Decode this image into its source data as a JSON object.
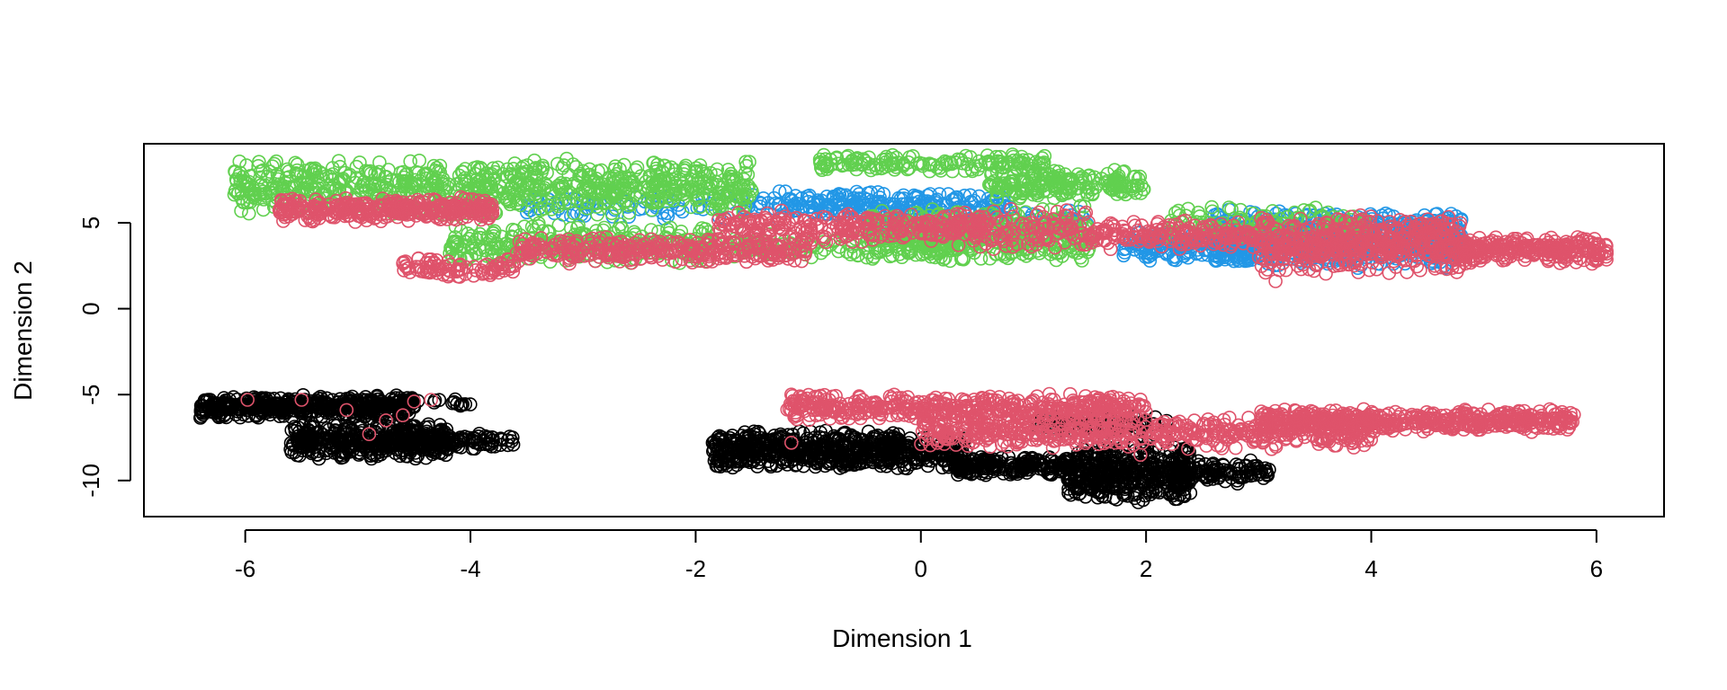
{
  "chart_data": {
    "type": "scatter",
    "title": "",
    "xlabel": "Dimension 1",
    "ylabel": "Dimension 2",
    "xlim": [
      -6.9,
      6.6
    ],
    "ylim": [
      -12.1,
      9.6
    ],
    "xticks": [
      -6,
      -4,
      -2,
      0,
      2,
      4,
      6
    ],
    "yticks": [
      -10,
      -5,
      0,
      5
    ],
    "grid": false,
    "marker": "open-circle",
    "series": [
      {
        "color": "#000000",
        "clusters": [
          {
            "x": [
              -6.4,
              -4.5
            ],
            "y": [
              -6.4,
              -5.0
            ],
            "n": 500
          },
          {
            "x": [
              -5.6,
              -4.2
            ],
            "y": [
              -8.8,
              -6.6
            ],
            "n": 420
          },
          {
            "x": [
              -4.6,
              -3.6
            ],
            "y": [
              -8.2,
              -7.2
            ],
            "n": 90
          },
          {
            "x": [
              -4.6,
              -4.0
            ],
            "y": [
              -5.7,
              -5.1
            ],
            "n": 20
          },
          {
            "x": [
              -1.85,
              -0.2
            ],
            "y": [
              -9.4,
              -7.0
            ],
            "n": 500
          },
          {
            "x": [
              -0.3,
              0.4
            ],
            "y": [
              -9.5,
              -7.3
            ],
            "n": 150
          },
          {
            "x": [
              0.3,
              1.3
            ],
            "y": [
              -9.8,
              -8.5
            ],
            "n": 190
          },
          {
            "x": [
              1.3,
              2.4
            ],
            "y": [
              -11.3,
              -7.8
            ],
            "n": 420
          },
          {
            "x": [
              2.2,
              3.1
            ],
            "y": [
              -10.2,
              -8.8
            ],
            "n": 120
          },
          {
            "x": [
              1.0,
              2.2
            ],
            "y": [
              -7.4,
              -6.2
            ],
            "n": 90
          }
        ]
      },
      {
        "color": "#2297E6",
        "clusters": [
          {
            "x": [
              2.6,
              4.8
            ],
            "y": [
              2.3,
              5.8
            ],
            "n": 700
          },
          {
            "x": [
              1.8,
              3.0
            ],
            "y": [
              2.6,
              4.6
            ],
            "n": 160
          },
          {
            "x": [
              -1.2,
              0.8
            ],
            "y": [
              5.2,
              6.9
            ],
            "n": 220
          },
          {
            "x": [
              -3.5,
              -1.2
            ],
            "y": [
              5.0,
              7.0
            ],
            "n": 90
          },
          {
            "x": [
              -0.5,
              1.5
            ],
            "y": [
              4.2,
              6.0
            ],
            "n": 100
          }
        ]
      },
      {
        "color": "#61D04F",
        "clusters": [
          {
            "x": [
              -6.1,
              -1.5
            ],
            "y": [
              5.4,
              8.8
            ],
            "n": 800
          },
          {
            "x": [
              -0.9,
              1.1
            ],
            "y": [
              7.9,
              9.0
            ],
            "n": 150
          },
          {
            "x": [
              0.6,
              2.0
            ],
            "y": [
              6.2,
              8.3
            ],
            "n": 200
          },
          {
            "x": [
              -0.5,
              1.5
            ],
            "y": [
              2.6,
              6.0
            ],
            "n": 450
          },
          {
            "x": [
              -4.2,
              -1.8
            ],
            "y": [
              2.5,
              5.0
            ],
            "n": 300
          },
          {
            "x": [
              -1.7,
              0.5
            ],
            "y": [
              2.9,
              4.5
            ],
            "n": 120
          },
          {
            "x": [
              2.2,
              4.0
            ],
            "y": [
              4.0,
              6.0
            ],
            "n": 120
          }
        ]
      },
      {
        "color": "#DF536B",
        "clusters": [
          {
            "x": [
              -5.7,
              -3.8
            ],
            "y": [
              5.0,
              6.5
            ],
            "n": 350
          },
          {
            "x": [
              -4.6,
              -3.6
            ],
            "y": [
              1.8,
              3.0
            ],
            "n": 90
          },
          {
            "x": [
              -3.6,
              -1.0
            ],
            "y": [
              2.6,
              4.2
            ],
            "n": 320
          },
          {
            "x": [
              -1.8,
              0.6
            ],
            "y": [
              3.8,
              5.8
            ],
            "n": 260
          },
          {
            "x": [
              0.3,
              1.5
            ],
            "y": [
              3.3,
              5.9
            ],
            "n": 120
          },
          {
            "x": [
              1.5,
              3.0
            ],
            "y": [
              3.4,
              5.2
            ],
            "n": 180
          },
          {
            "x": [
              3.0,
              4.8
            ],
            "y": [
              2.0,
              5.6
            ],
            "n": 500
          },
          {
            "x": [
              4.8,
              6.1
            ],
            "y": [
              2.6,
              4.2
            ],
            "n": 260
          },
          {
            "x": [
              -1.2,
              2.0
            ],
            "y": [
              -6.6,
              -4.9
            ],
            "n": 450
          },
          {
            "x": [
              0.0,
              4.0
            ],
            "y": [
              -8.2,
              -6.2
            ],
            "n": 500
          },
          {
            "x": [
              3.0,
              5.8
            ],
            "y": [
              -7.2,
              -5.8
            ],
            "n": 500
          }
        ],
        "points": [
          [
            -5.98,
            -5.3
          ],
          [
            -5.5,
            -5.3
          ],
          [
            -5.1,
            -5.9
          ],
          [
            -4.9,
            -7.3
          ],
          [
            -4.75,
            -6.5
          ],
          [
            -4.6,
            -6.2
          ],
          [
            -4.5,
            -5.4
          ],
          [
            -4.35,
            -5.3
          ],
          [
            -1.15,
            -7.8
          ],
          [
            1.95,
            -8.5
          ],
          [
            3.15,
            1.6
          ],
          [
            1.05,
            5.6
          ],
          [
            0.8,
            5.8
          ]
        ]
      }
    ]
  }
}
